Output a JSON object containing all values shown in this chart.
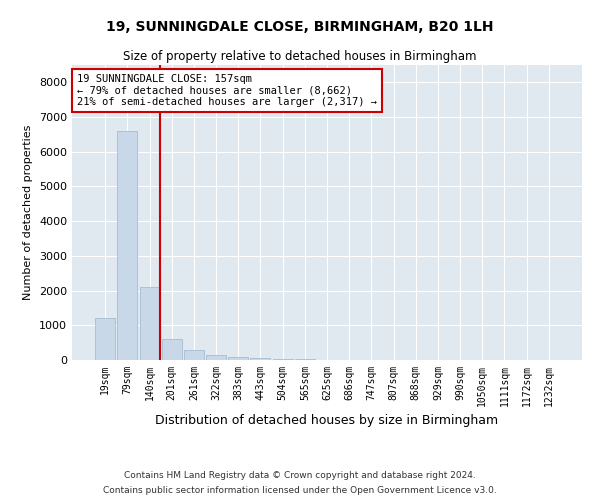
{
  "title1": "19, SUNNINGDALE CLOSE, BIRMINGHAM, B20 1LH",
  "title2": "Size of property relative to detached houses in Birmingham",
  "xlabel": "Distribution of detached houses by size in Birmingham",
  "ylabel": "Number of detached properties",
  "footnote1": "Contains HM Land Registry data © Crown copyright and database right 2024.",
  "footnote2": "Contains public sector information licensed under the Open Government Licence v3.0.",
  "annotation_line1": "19 SUNNINGDALE CLOSE: 157sqm",
  "annotation_line2": "← 79% of detached houses are smaller (8,662)",
  "annotation_line3": "21% of semi-detached houses are larger (2,317) →",
  "bar_color": "#c8d8e8",
  "bar_edge_color": "#9ab8cc",
  "line_color": "#cc0000",
  "annotation_box_color": "#cc0000",
  "background_color": "#e0e8f0",
  "bin_labels": [
    "19sqm",
    "79sqm",
    "140sqm",
    "201sqm",
    "261sqm",
    "322sqm",
    "383sqm",
    "443sqm",
    "504sqm",
    "565sqm",
    "625sqm",
    "686sqm",
    "747sqm",
    "807sqm",
    "868sqm",
    "929sqm",
    "990sqm",
    "1050sqm",
    "1111sqm",
    "1172sqm",
    "1232sqm"
  ],
  "bar_heights": [
    1200,
    6600,
    2100,
    600,
    300,
    150,
    100,
    60,
    40,
    20,
    5,
    0,
    0,
    0,
    0,
    0,
    0,
    0,
    0,
    0,
    0
  ],
  "property_bin_index": 2,
  "ylim": [
    0,
    8500
  ],
  "yticks": [
    0,
    1000,
    2000,
    3000,
    4000,
    5000,
    6000,
    7000,
    8000
  ]
}
